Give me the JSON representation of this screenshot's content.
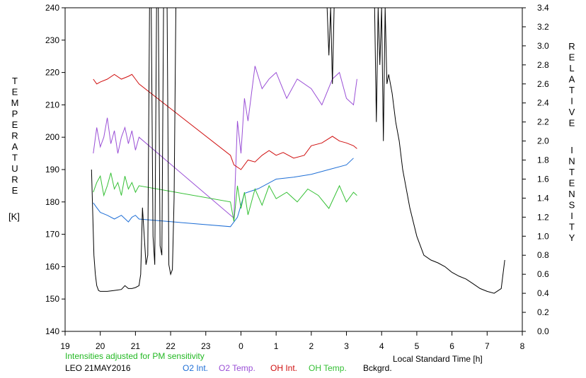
{
  "chart_data": {
    "type": "line",
    "left_axis": {
      "label_letters": [
        "T",
        "E",
        "M",
        "P",
        "E",
        "R",
        "A",
        "T",
        "U",
        "R",
        "E"
      ],
      "unit": "[K]",
      "ylim": [
        140,
        240
      ],
      "ticks": [
        140,
        150,
        160,
        170,
        180,
        190,
        200,
        210,
        220,
        230,
        240
      ]
    },
    "right_axis": {
      "label_word1": [
        "R",
        "E",
        "L",
        "A",
        "T",
        "I",
        "V",
        "E"
      ],
      "label_word2": [
        "I",
        "N",
        "T",
        "E",
        "N",
        "S",
        "I",
        "T",
        "Y"
      ],
      "ylim": [
        0.0,
        3.4
      ],
      "ticks": [
        "0.0",
        "0.2",
        "0.4",
        "0.6",
        "0.8",
        "1.0",
        "1.2",
        "1.4",
        "1.6",
        "1.8",
        "2.0",
        "2.2",
        "2.4",
        "2.6",
        "2.8",
        "3.0",
        "3.2",
        "3.4"
      ]
    },
    "x_axis": {
      "label": "Local Standard Time [h]",
      "range_hours": [
        19,
        32
      ],
      "tick_labels": [
        "19",
        "20",
        "21",
        "22",
        "23",
        "0",
        "1",
        "2",
        "3",
        "4",
        "5",
        "6",
        "7",
        "8"
      ]
    },
    "note": "Intensities adjusted for PM sensitivity",
    "station": "LEO 21MAY2016",
    "series": [
      {
        "name": "O2 Int.",
        "color": "#1f6fd6",
        "axis": "right",
        "x": [
          19.8,
          19.9,
          20.0,
          20.2,
          20.4,
          20.6,
          20.8,
          20.9,
          21.0,
          21.1,
          23.7,
          23.9,
          24.1,
          24.5,
          25.0,
          25.5,
          26.0,
          26.5,
          27.0,
          27.2
        ],
        "y": [
          1.35,
          1.3,
          1.25,
          1.22,
          1.18,
          1.22,
          1.15,
          1.2,
          1.22,
          1.18,
          1.1,
          1.2,
          1.45,
          1.5,
          1.6,
          1.62,
          1.65,
          1.7,
          1.75,
          1.82
        ]
      },
      {
        "name": "O2 Temp.",
        "color": "#9a4fd6",
        "axis": "left",
        "x": [
          19.8,
          19.9,
          20.0,
          20.1,
          20.2,
          20.3,
          20.4,
          20.5,
          20.6,
          20.7,
          20.8,
          20.9,
          21.0,
          21.1,
          23.8,
          23.9,
          24.0,
          24.1,
          24.2,
          24.4,
          24.6,
          24.8,
          25.0,
          25.3,
          25.6,
          26.0,
          26.3,
          26.6,
          26.8,
          27.0,
          27.2,
          27.3
        ],
        "y": [
          195,
          203,
          197,
          200,
          206,
          198,
          202,
          195,
          200,
          203,
          198,
          202,
          196,
          200,
          175,
          205,
          195,
          212,
          205,
          222,
          215,
          218,
          220,
          212,
          218,
          215,
          210,
          218,
          220,
          212,
          210,
          218
        ]
      },
      {
        "name": "OH Int.",
        "color": "#d01010",
        "axis": "right",
        "x": [
          19.8,
          19.9,
          20.0,
          20.2,
          20.4,
          20.6,
          20.8,
          20.9,
          21.0,
          21.1,
          23.7,
          23.8,
          24.0,
          24.2,
          24.4,
          24.6,
          24.8,
          25.0,
          25.2,
          25.5,
          25.8,
          26.0,
          26.3,
          26.6,
          26.8,
          27.0,
          27.2,
          27.3
        ],
        "y": [
          2.65,
          2.6,
          2.62,
          2.65,
          2.7,
          2.65,
          2.68,
          2.7,
          2.65,
          2.6,
          1.85,
          1.75,
          1.7,
          1.8,
          1.78,
          1.85,
          1.9,
          1.85,
          1.88,
          1.82,
          1.85,
          1.95,
          1.98,
          2.05,
          2.0,
          1.98,
          1.95,
          1.92
        ]
      },
      {
        "name": "OH Temp.",
        "color": "#35c035",
        "axis": "left",
        "x": [
          19.8,
          19.9,
          20.0,
          20.1,
          20.2,
          20.3,
          20.4,
          20.5,
          20.6,
          20.7,
          20.8,
          20.9,
          21.0,
          21.1,
          23.7,
          23.8,
          23.9,
          24.0,
          24.1,
          24.2,
          24.4,
          24.6,
          24.8,
          25.0,
          25.3,
          25.6,
          25.9,
          26.2,
          26.5,
          26.8,
          27.0,
          27.2,
          27.3
        ],
        "y": [
          183,
          186,
          188,
          182,
          185,
          189,
          184,
          186,
          182,
          188,
          184,
          186,
          183,
          185,
          180,
          174,
          185,
          178,
          183,
          176,
          184,
          179,
          185,
          181,
          183,
          180,
          184,
          182,
          178,
          185,
          180,
          183,
          182
        ]
      },
      {
        "name": "Bckgrd.",
        "color": "#000000",
        "axis": "right",
        "x": [
          19.75,
          19.78,
          19.82,
          19.86,
          19.9,
          19.95,
          20.0,
          20.2,
          20.4,
          20.6,
          20.7,
          20.8,
          20.9,
          21.0,
          21.1,
          21.15,
          21.2,
          21.3,
          21.35,
          21.4,
          21.45,
          21.5,
          21.55,
          21.6,
          21.65,
          21.7,
          21.75,
          21.8,
          21.85,
          21.9,
          21.95,
          22.0,
          22.05,
          22.1,
          22.15
        ],
        "y": [
          1.7,
          1.3,
          0.8,
          0.6,
          0.48,
          0.43,
          0.42,
          0.42,
          0.43,
          0.44,
          0.48,
          0.45,
          0.45,
          0.46,
          0.48,
          0.6,
          1.3,
          0.7,
          0.8,
          3.4,
          3.4,
          1.0,
          0.7,
          3.4,
          3.4,
          0.9,
          0.8,
          3.4,
          3.4,
          3.4,
          0.7,
          0.6,
          0.65,
          1.4,
          3.4
        ]
      },
      {
        "name": "Bckgrd.",
        "color": "#000000",
        "axis": "right",
        "x": [
          26.45,
          26.5,
          26.55,
          26.6,
          26.65
        ],
        "y": [
          3.4,
          2.9,
          3.4,
          2.6,
          3.4
        ]
      },
      {
        "name": "Bckgrd.",
        "color": "#000000",
        "axis": "right",
        "x": [
          27.8,
          27.85,
          27.9,
          27.95,
          28.0,
          28.05,
          28.1,
          28.15,
          28.2,
          28.3,
          28.4,
          28.5,
          28.6,
          28.8,
          29.0,
          29.2,
          29.4,
          29.6,
          29.8,
          30.0,
          30.2,
          30.4,
          30.6,
          30.8,
          31.0,
          31.2,
          31.4,
          31.5
        ],
        "y": [
          3.4,
          2.2,
          3.4,
          2.8,
          3.4,
          2.0,
          3.4,
          2.6,
          2.7,
          2.5,
          2.2,
          2.0,
          1.7,
          1.3,
          1.0,
          0.8,
          0.75,
          0.72,
          0.68,
          0.62,
          0.58,
          0.55,
          0.5,
          0.45,
          0.42,
          0.4,
          0.45,
          0.75
        ]
      }
    ]
  },
  "legend": [
    {
      "label": "O2 Int.",
      "color": "#1f6fd6"
    },
    {
      "label": "O2 Temp.",
      "color": "#9a4fd6"
    },
    {
      "label": "OH Int.",
      "color": "#d01010"
    },
    {
      "label": "OH Temp.",
      "color": "#35c035"
    },
    {
      "label": "Bckgrd.",
      "color": "#000000"
    }
  ],
  "colors": {
    "axis": "#000000",
    "note": "#22b822",
    "background": "#ffffff"
  }
}
